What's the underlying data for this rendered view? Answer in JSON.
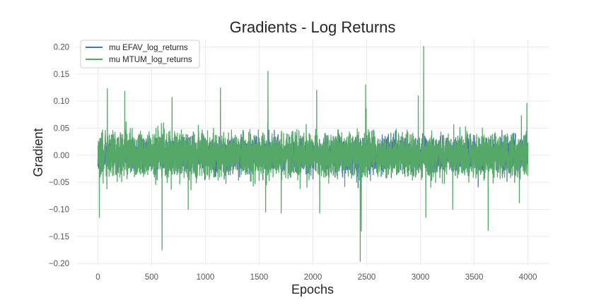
{
  "chart_data": {
    "type": "line",
    "title": "Gradients - Log Returns",
    "xlabel": "Epochs",
    "ylabel": "Gradient",
    "xlim": [
      -200,
      4200
    ],
    "ylim": [
      -0.205,
      0.215
    ],
    "xticks": [
      0,
      500,
      1000,
      1500,
      2000,
      2500,
      3000,
      3500,
      4000
    ],
    "xtick_labels": [
      "0",
      "500",
      "1000",
      "1500",
      "2000",
      "2500",
      "3000",
      "3500",
      "4000"
    ],
    "yticks": [
      -0.2,
      -0.15,
      -0.1,
      -0.05,
      0.0,
      0.05,
      0.1,
      0.15,
      0.2
    ],
    "ytick_labels": [
      "−0.20",
      "−0.15",
      "−0.10",
      "−0.05",
      "0.00",
      "0.05",
      "0.10",
      "0.15",
      "0.20"
    ],
    "grid": true,
    "legend_position": "top-left",
    "series": [
      {
        "name": "mu EFAV_log_returns",
        "color": "#4c72b0",
        "x_range": [
          0,
          4000
        ],
        "n_points": 4001,
        "typical_amplitude": 0.03,
        "notable_points": [
          [
            14,
            0.022
          ],
          [
            120,
            -0.018
          ],
          [
            600,
            0.028
          ],
          [
            1580,
            0.06
          ],
          [
            2420,
            -0.06
          ],
          [
            3020,
            0.04
          ],
          [
            3960,
            0.035
          ]
        ]
      },
      {
        "name": "mu MTUM_log_returns",
        "color": "#55a868",
        "x_range": [
          0,
          4000
        ],
        "n_points": 4001,
        "typical_amplitude": 0.04,
        "notable_points": [
          [
            5,
            0.026
          ],
          [
            14,
            -0.115
          ],
          [
            88,
            0.123
          ],
          [
            250,
            0.118
          ],
          [
            597,
            -0.175
          ],
          [
            690,
            0.107
          ],
          [
            840,
            -0.1
          ],
          [
            1140,
            0.124
          ],
          [
            1560,
            -0.105
          ],
          [
            1582,
            0.155
          ],
          [
            1705,
            -0.107
          ],
          [
            2035,
            0.12
          ],
          [
            2063,
            -0.107
          ],
          [
            2440,
            -0.196
          ],
          [
            2450,
            -0.14
          ],
          [
            2490,
            0.13
          ],
          [
            2980,
            0.11
          ],
          [
            3030,
            0.201
          ],
          [
            3050,
            -0.115
          ],
          [
            3300,
            -0.1
          ],
          [
            3630,
            -0.139
          ],
          [
            3920,
            -0.088
          ],
          [
            3990,
            0.096
          ]
        ]
      }
    ]
  }
}
